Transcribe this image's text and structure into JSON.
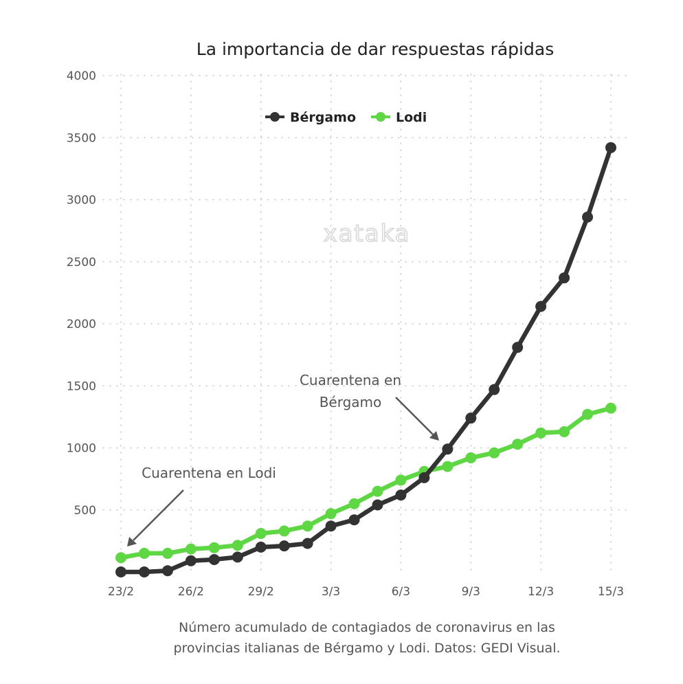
{
  "chart_data": {
    "type": "line",
    "title": "La importancia de dar respuestas rápidas",
    "x": [
      "23/2",
      "24/2",
      "25/2",
      "26/2",
      "27/2",
      "28/2",
      "29/2",
      "1/3",
      "2/3",
      "3/3",
      "4/3",
      "5/3",
      "6/3",
      "7/3",
      "8/3",
      "9/3",
      "10/3",
      "11/3",
      "12/3",
      "13/3",
      "14/3",
      "15/3"
    ],
    "xticks": [
      "23/2",
      "26/2",
      "29/2",
      "3/3",
      "6/3",
      "9/3",
      "12/3",
      "15/3"
    ],
    "yticks": [
      500,
      1000,
      1500,
      2000,
      2500,
      3000,
      3500,
      4000
    ],
    "ylim": [
      0,
      4000
    ],
    "xlabel": "",
    "ylabel": "",
    "legend_position": "top-center",
    "grid": true,
    "series": [
      {
        "name": "Bérgamo",
        "color": "#333333",
        "values": [
          0,
          0,
          10,
          90,
          100,
          120,
          200,
          210,
          230,
          370,
          420,
          540,
          620,
          760,
          990,
          1240,
          1470,
          1810,
          2140,
          2370,
          2860,
          3420
        ]
      },
      {
        "name": "Lodi",
        "color": "#5fd644",
        "values": [
          115,
          150,
          150,
          185,
          195,
          215,
          310,
          330,
          370,
          470,
          550,
          650,
          740,
          810,
          850,
          920,
          960,
          1030,
          1120,
          1130,
          1270,
          1320
        ]
      }
    ],
    "annotations": [
      {
        "id": "lodi",
        "lines": [
          "Cuarentena en Lodi"
        ],
        "target_index": 0,
        "target_series": "Lodi"
      },
      {
        "id": "bergamo",
        "lines": [
          "Cuarentena en",
          "Bérgamo"
        ],
        "target_index": 14,
        "target_series": "Bérgamo"
      }
    ],
    "caption": [
      "Número acumulado de contagiados de coronavirus en las",
      "provincias italianas de Bérgamo y Lodi. Datos: GEDI Visual."
    ]
  },
  "watermark": "xataka",
  "colors": {
    "bergamo": "#333333",
    "lodi": "#5fd644",
    "text": "#555555"
  }
}
